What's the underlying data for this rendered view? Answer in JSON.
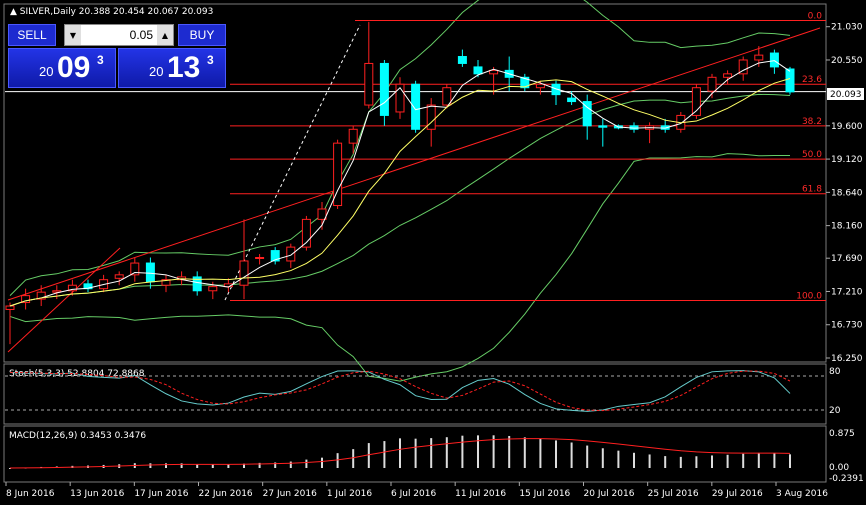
{
  "window": {
    "symbol_label": "SILVER,Daily",
    "ohlc": "20.388 20.454 20.067 20.093"
  },
  "trade_panel": {
    "sell_label": "SELL",
    "buy_label": "BUY",
    "lot_value": "0.05",
    "sell_price": {
      "prefix": "20",
      "big": "09",
      "sup": "3"
    },
    "buy_price": {
      "prefix": "20",
      "big": "13",
      "sup": "3"
    }
  },
  "price_axis": {
    "ticks": [
      "21.030",
      "20.550",
      "19.600",
      "19.120",
      "18.640",
      "18.160",
      "17.690",
      "17.210",
      "16.730",
      "16.250"
    ],
    "current_price": "20.093"
  },
  "fibonacci": {
    "levels": [
      "0.0",
      "23.6",
      "38.2",
      "50.0",
      "61.8",
      "100.0"
    ]
  },
  "stochastic": {
    "label": "Stoch(5,3,3) 52.8804 72.8868",
    "ticks": [
      "80",
      "20"
    ]
  },
  "macd": {
    "label": "MACD(12,26,9) 0.3453 0.3476",
    "ticks": [
      "0.875",
      "0.00",
      "-0.2391"
    ]
  },
  "time_axis": {
    "labels": [
      "8 Jun 2016",
      "13 Jun 2016",
      "17 Jun 2016",
      "22 Jun 2016",
      "27 Jun 2016",
      "1 Jul 2016",
      "6 Jul 2016",
      "11 Jul 2016",
      "15 Jul 2016",
      "20 Jul 2016",
      "25 Jul 2016",
      "29 Jul 2016",
      "3 Aug 2016"
    ]
  },
  "chart_data": {
    "type": "candlestick",
    "ylim": [
      16.25,
      21.3
    ],
    "candles": [
      {
        "o": 16.95,
        "h": 17.05,
        "l": 16.45,
        "c": 17.0
      },
      {
        "o": 17.05,
        "h": 17.25,
        "l": 16.95,
        "c": 17.15
      },
      {
        "o": 17.1,
        "h": 17.3,
        "l": 17.0,
        "c": 17.2
      },
      {
        "o": 17.2,
        "h": 17.3,
        "l": 17.1,
        "c": 17.22
      },
      {
        "o": 17.22,
        "h": 17.38,
        "l": 17.15,
        "c": 17.3
      },
      {
        "o": 17.32,
        "h": 17.38,
        "l": 17.2,
        "c": 17.25
      },
      {
        "o": 17.25,
        "h": 17.45,
        "l": 17.2,
        "c": 17.38
      },
      {
        "o": 17.4,
        "h": 17.5,
        "l": 17.3,
        "c": 17.45
      },
      {
        "o": 17.45,
        "h": 17.7,
        "l": 17.35,
        "c": 17.62
      },
      {
        "o": 17.62,
        "h": 17.7,
        "l": 17.25,
        "c": 17.35
      },
      {
        "o": 17.3,
        "h": 17.45,
        "l": 17.2,
        "c": 17.38
      },
      {
        "o": 17.38,
        "h": 17.5,
        "l": 17.3,
        "c": 17.42
      },
      {
        "o": 17.42,
        "h": 17.5,
        "l": 17.15,
        "c": 17.22
      },
      {
        "o": 17.22,
        "h": 17.35,
        "l": 17.1,
        "c": 17.28
      },
      {
        "o": 17.28,
        "h": 17.4,
        "l": 17.2,
        "c": 17.32
      },
      {
        "o": 17.3,
        "h": 18.25,
        "l": 17.1,
        "c": 17.65
      },
      {
        "o": 17.7,
        "h": 17.75,
        "l": 17.6,
        "c": 17.7
      },
      {
        "o": 17.8,
        "h": 17.85,
        "l": 17.6,
        "c": 17.65
      },
      {
        "o": 17.65,
        "h": 17.9,
        "l": 17.55,
        "c": 17.85
      },
      {
        "o": 17.85,
        "h": 18.3,
        "l": 17.8,
        "c": 18.25
      },
      {
        "o": 18.25,
        "h": 18.5,
        "l": 18.1,
        "c": 18.4
      },
      {
        "o": 18.45,
        "h": 19.4,
        "l": 18.4,
        "c": 19.35
      },
      {
        "o": 19.35,
        "h": 19.6,
        "l": 19.2,
        "c": 19.55
      },
      {
        "o": 19.9,
        "h": 21.1,
        "l": 19.85,
        "c": 20.5
      },
      {
        "o": 20.5,
        "h": 20.55,
        "l": 19.6,
        "c": 19.75
      },
      {
        "o": 19.8,
        "h": 20.3,
        "l": 19.7,
        "c": 20.2
      },
      {
        "o": 20.2,
        "h": 20.25,
        "l": 19.5,
        "c": 19.55
      },
      {
        "o": 19.55,
        "h": 20.0,
        "l": 19.3,
        "c": 19.9
      },
      {
        "o": 19.9,
        "h": 20.2,
        "l": 19.85,
        "c": 20.15
      },
      {
        "o": 20.6,
        "h": 20.7,
        "l": 20.45,
        "c": 20.5
      },
      {
        "o": 20.45,
        "h": 20.55,
        "l": 20.3,
        "c": 20.35
      },
      {
        "o": 20.35,
        "h": 20.45,
        "l": 20.05,
        "c": 20.4
      },
      {
        "o": 20.4,
        "h": 20.6,
        "l": 20.1,
        "c": 20.3
      },
      {
        "o": 20.3,
        "h": 20.35,
        "l": 20.1,
        "c": 20.15
      },
      {
        "o": 20.15,
        "h": 20.25,
        "l": 20.05,
        "c": 20.2
      },
      {
        "o": 20.2,
        "h": 20.25,
        "l": 19.9,
        "c": 20.05
      },
      {
        "o": 20.0,
        "h": 20.1,
        "l": 19.9,
        "c": 19.95
      },
      {
        "o": 19.95,
        "h": 20.05,
        "l": 19.4,
        "c": 19.6
      },
      {
        "o": 19.6,
        "h": 19.7,
        "l": 19.3,
        "c": 19.58
      },
      {
        "o": 19.6,
        "h": 19.62,
        "l": 19.55,
        "c": 19.57
      },
      {
        "o": 19.6,
        "h": 19.65,
        "l": 19.5,
        "c": 19.55
      },
      {
        "o": 19.55,
        "h": 19.65,
        "l": 19.35,
        "c": 19.6
      },
      {
        "o": 19.6,
        "h": 19.7,
        "l": 19.5,
        "c": 19.55
      },
      {
        "o": 19.55,
        "h": 19.8,
        "l": 19.5,
        "c": 19.75
      },
      {
        "o": 19.75,
        "h": 20.2,
        "l": 19.7,
        "c": 20.15
      },
      {
        "o": 20.1,
        "h": 20.35,
        "l": 20.0,
        "c": 20.3
      },
      {
        "o": 20.3,
        "h": 20.4,
        "l": 20.2,
        "c": 20.35
      },
      {
        "o": 20.35,
        "h": 20.6,
        "l": 20.25,
        "c": 20.55
      },
      {
        "o": 20.55,
        "h": 20.75,
        "l": 20.45,
        "c": 20.62
      },
      {
        "o": 20.65,
        "h": 20.7,
        "l": 20.35,
        "c": 20.45
      },
      {
        "o": 20.42,
        "h": 20.45,
        "l": 20.05,
        "c": 20.09
      }
    ]
  },
  "colors": {
    "bull": "#ff2020",
    "bear": "#00ffff",
    "fib": "#ff2020",
    "ma_white": "#ffffff",
    "ma_yellow": "#ffff66",
    "bands": "#66cc66",
    "grid": "#555555"
  }
}
